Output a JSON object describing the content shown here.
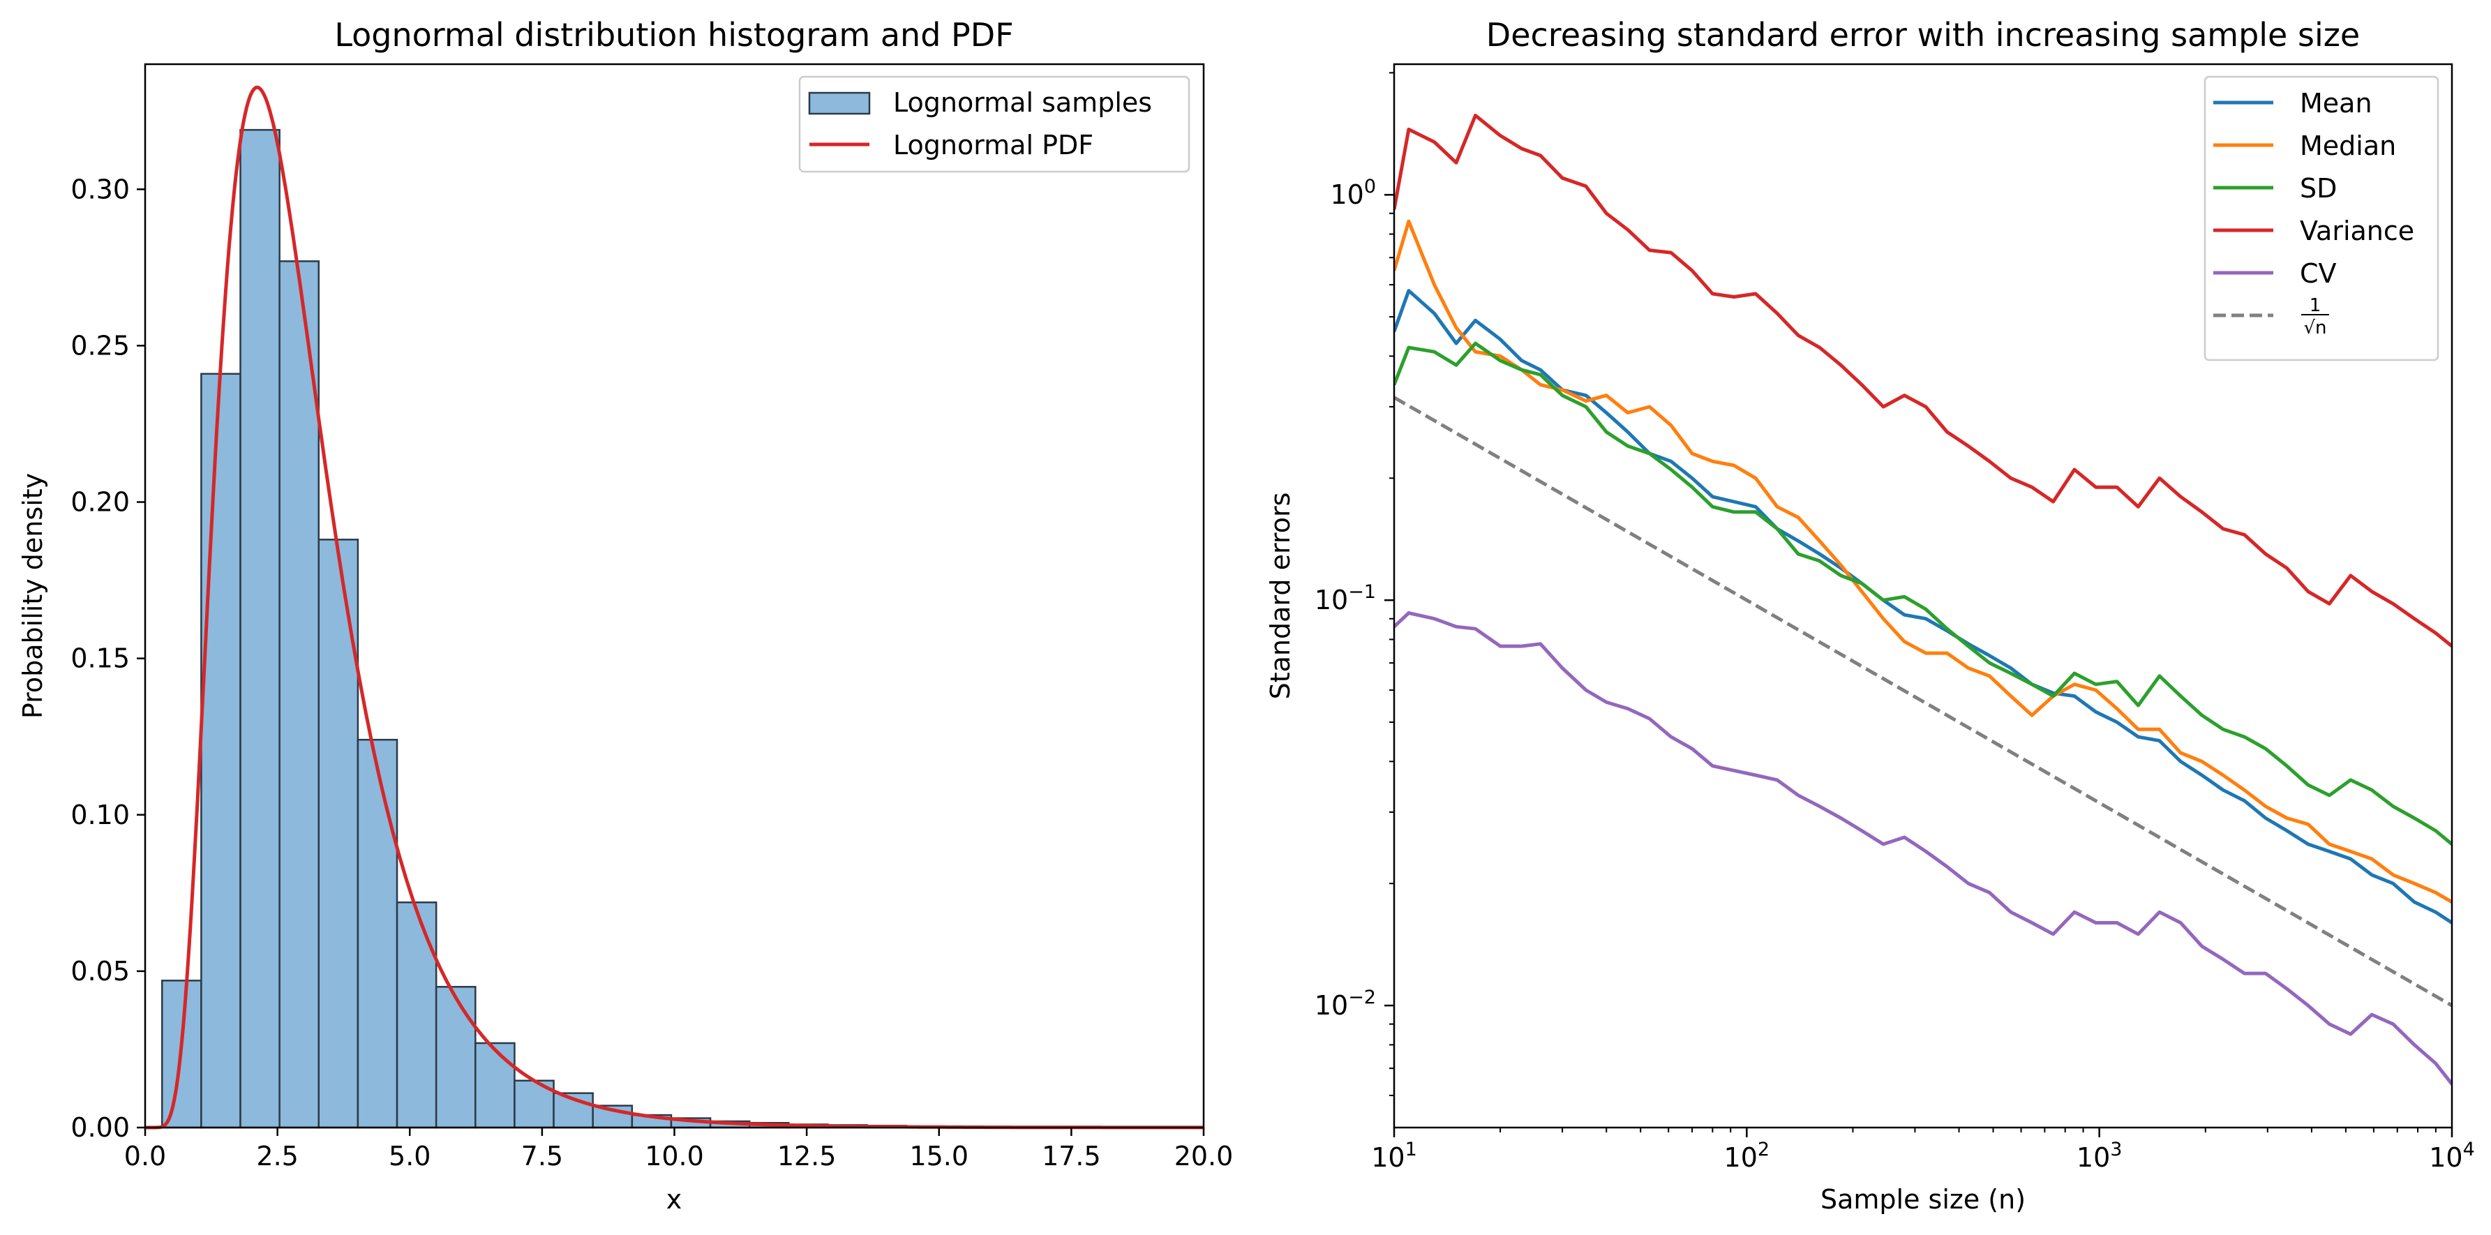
{
  "chart_data": [
    {
      "type": "bar",
      "title": "Lognormal distribution histogram and PDF",
      "xlabel": "x",
      "ylabel": "Probability density",
      "xlim": [
        0,
        20
      ],
      "ylim": [
        0,
        0.34
      ],
      "xticks": [
        "0.0",
        "2.5",
        "5.0",
        "7.5",
        "10.0",
        "12.5",
        "15.0",
        "17.5",
        "20.0"
      ],
      "yticks": [
        "0.00",
        "0.05",
        "0.10",
        "0.15",
        "0.20",
        "0.25",
        "0.30"
      ],
      "legend_position": "top-right",
      "bins": {
        "start": 0.32,
        "width": 0.74,
        "heights": [
          0.047,
          0.241,
          0.319,
          0.277,
          0.188,
          0.124,
          0.072,
          0.045,
          0.027,
          0.015,
          0.011,
          0.007,
          0.004,
          0.003,
          0.002,
          0.0015,
          0.001,
          0.0008,
          0.0006,
          0.0004
        ]
      },
      "series": [
        {
          "name": "Lognormal samples",
          "kind": "histogram",
          "color": "#8cb9dc",
          "edge_color": "#2b3a47"
        },
        {
          "name": "Lognormal PDF",
          "kind": "line",
          "color": "#d62728",
          "mu": 1.0,
          "sigma": 0.5
        }
      ]
    },
    {
      "type": "line",
      "title": "Decreasing standard error with increasing sample size",
      "xlabel": "Sample size (n)",
      "ylabel": "Standard errors",
      "xscale": "log",
      "yscale": "log",
      "xlim": [
        10,
        10000
      ],
      "ylim": [
        0.005,
        2.1
      ],
      "legend_position": "top-right",
      "x": [
        10,
        11,
        13,
        15,
        17,
        20,
        23,
        26,
        30,
        35,
        40,
        46,
        53,
        61,
        70,
        80,
        92,
        106,
        122,
        140,
        161,
        185,
        212,
        244,
        280,
        322,
        370,
        425,
        488,
        561,
        644,
        740,
        850,
        977,
        1122,
        1289,
        1481,
        1701,
        1954,
        2245,
        2579,
        2962,
        3403,
        3910,
        4492,
        5160,
        5928,
        6810,
        7823,
        8987,
        10000
      ],
      "series": [
        {
          "name": "Mean",
          "color": "#1f77b4",
          "values": [
            0.46,
            0.58,
            0.51,
            0.43,
            0.49,
            0.44,
            0.39,
            0.37,
            0.33,
            0.32,
            0.29,
            0.26,
            0.23,
            0.22,
            0.2,
            0.18,
            0.175,
            0.17,
            0.15,
            0.14,
            0.13,
            0.12,
            0.11,
            0.1,
            0.092,
            0.09,
            0.084,
            0.078,
            0.073,
            0.068,
            0.062,
            0.059,
            0.058,
            0.053,
            0.05,
            0.046,
            0.045,
            0.04,
            0.037,
            0.034,
            0.032,
            0.029,
            0.027,
            0.025,
            0.024,
            0.023,
            0.021,
            0.02,
            0.018,
            0.017,
            0.016
          ]
        },
        {
          "name": "Median",
          "color": "#ff7f0e",
          "values": [
            0.65,
            0.86,
            0.6,
            0.47,
            0.41,
            0.4,
            0.37,
            0.34,
            0.33,
            0.31,
            0.32,
            0.29,
            0.3,
            0.27,
            0.23,
            0.22,
            0.215,
            0.2,
            0.17,
            0.16,
            0.14,
            0.122,
            0.105,
            0.09,
            0.079,
            0.074,
            0.074,
            0.068,
            0.065,
            0.058,
            0.052,
            0.058,
            0.062,
            0.06,
            0.054,
            0.048,
            0.048,
            0.042,
            0.04,
            0.037,
            0.034,
            0.031,
            0.029,
            0.028,
            0.025,
            0.024,
            0.023,
            0.021,
            0.02,
            0.019,
            0.018
          ]
        },
        {
          "name": "SD",
          "color": "#2ca02c",
          "values": [
            0.34,
            0.42,
            0.41,
            0.38,
            0.43,
            0.39,
            0.37,
            0.36,
            0.32,
            0.3,
            0.26,
            0.24,
            0.23,
            0.21,
            0.19,
            0.17,
            0.165,
            0.165,
            0.15,
            0.13,
            0.125,
            0.115,
            0.11,
            0.1,
            0.102,
            0.095,
            0.085,
            0.077,
            0.07,
            0.066,
            0.062,
            0.058,
            0.066,
            0.062,
            0.063,
            0.055,
            0.065,
            0.058,
            0.052,
            0.048,
            0.046,
            0.043,
            0.039,
            0.035,
            0.033,
            0.036,
            0.034,
            0.031,
            0.029,
            0.027,
            0.025
          ]
        },
        {
          "name": "Variance",
          "color": "#d62728",
          "values": [
            0.92,
            1.45,
            1.35,
            1.2,
            1.57,
            1.4,
            1.3,
            1.25,
            1.1,
            1.05,
            0.9,
            0.82,
            0.73,
            0.72,
            0.65,
            0.57,
            0.56,
            0.57,
            0.51,
            0.45,
            0.42,
            0.38,
            0.34,
            0.3,
            0.32,
            0.3,
            0.26,
            0.24,
            0.22,
            0.2,
            0.19,
            0.175,
            0.21,
            0.19,
            0.19,
            0.17,
            0.2,
            0.18,
            0.165,
            0.15,
            0.145,
            0.13,
            0.12,
            0.105,
            0.098,
            0.115,
            0.105,
            0.098,
            0.09,
            0.083,
            0.077
          ]
        },
        {
          "name": "CV",
          "color": "#9467bd",
          "values": [
            0.086,
            0.093,
            0.09,
            0.086,
            0.085,
            0.077,
            0.077,
            0.078,
            0.068,
            0.06,
            0.056,
            0.054,
            0.051,
            0.046,
            0.043,
            0.039,
            0.038,
            0.037,
            0.036,
            0.033,
            0.031,
            0.029,
            0.027,
            0.025,
            0.026,
            0.024,
            0.022,
            0.02,
            0.019,
            0.017,
            0.016,
            0.015,
            0.017,
            0.016,
            0.016,
            0.015,
            0.017,
            0.016,
            0.014,
            0.013,
            0.012,
            0.012,
            0.011,
            0.01,
            0.009,
            0.0085,
            0.0095,
            0.009,
            0.008,
            0.0072,
            0.0064
          ]
        },
        {
          "name": "1/√n",
          "color": "#808080",
          "dashed": true,
          "label_fraction": {
            "num": "1",
            "den": "√n"
          }
        }
      ]
    }
  ]
}
